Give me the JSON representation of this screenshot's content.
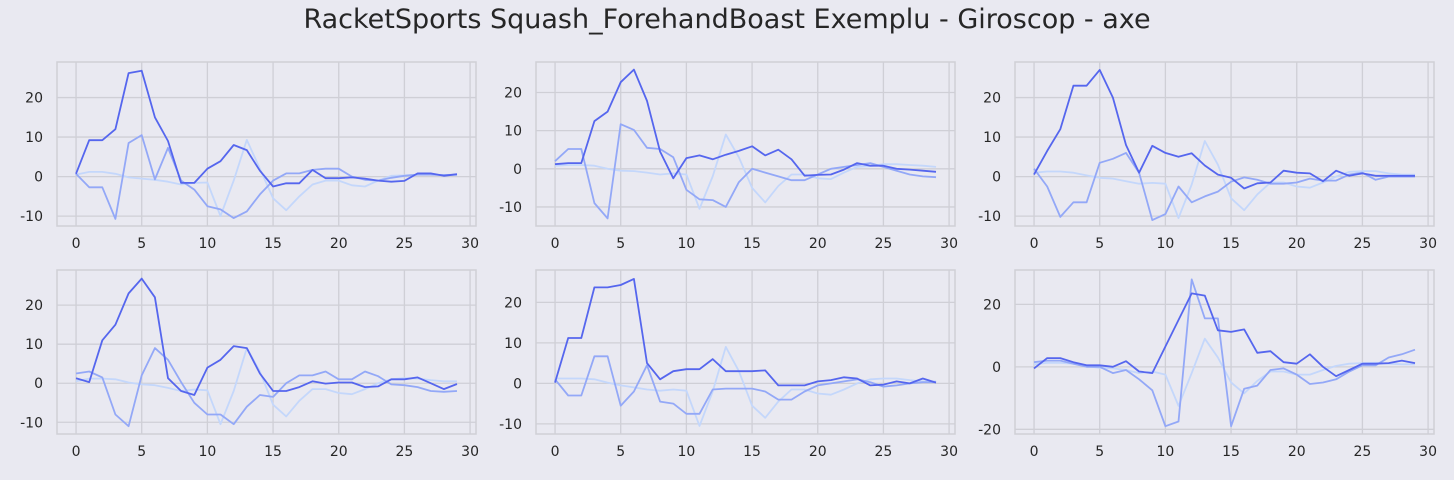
{
  "title": "RacketSports Squash_ForehandBoast Exemplu - Giroscop - axe",
  "colors": {
    "background": "#e9e9f1",
    "plot_bg": "#e9e9f1",
    "grid": "#cfcfd6",
    "series": [
      "#5566ee",
      "#93a8f7",
      "#c4d7fb"
    ]
  },
  "chart_data": [
    {
      "type": "line",
      "title": "",
      "x": [
        0,
        1,
        2,
        3,
        4,
        5,
        6,
        7,
        8,
        9,
        10,
        11,
        12,
        13,
        14,
        15,
        16,
        17,
        18,
        19,
        20,
        21,
        22,
        23,
        24,
        25,
        26,
        27,
        28,
        29
      ],
      "xlim": [
        -1.45,
        30.45
      ],
      "ylim": [
        -12.5,
        29
      ],
      "xticks": [
        0,
        5,
        10,
        15,
        20,
        25,
        30
      ],
      "yticks": [
        -10,
        0,
        10,
        20
      ],
      "series": [
        {
          "values": [
            0.7,
            9.2,
            9.2,
            12,
            26.2,
            26.8,
            15,
            9,
            -1.6,
            -1.6,
            2,
            3.9,
            8,
            6.7,
            1.5,
            -2.5,
            -1.7,
            -1.7,
            1.7,
            -0.4,
            -0.4,
            -0.2,
            -0.5,
            -1,
            -1.3,
            -1.1,
            0.8,
            0.8,
            0.2,
            0.6
          ]
        },
        {
          "values": [
            0.7,
            -2.7,
            -2.7,
            -10.7,
            8.5,
            10.5,
            -0.7,
            7.3,
            -1,
            -3.3,
            -7.5,
            -8.3,
            -10.5,
            -8.8,
            -4.5,
            -1,
            0.8,
            0.8,
            1.7,
            2,
            2,
            0,
            -0.8,
            -1,
            -0.3,
            0.2,
            0.5,
            0.5,
            0.4,
            0.5
          ]
        },
        {
          "values": [
            0.5,
            1.2,
            1.2,
            0.7,
            -0.2,
            -0.5,
            -0.8,
            -1.3,
            -2,
            -1.6,
            -1.5,
            -10,
            -1,
            9.3,
            2,
            -5.5,
            -8.5,
            -5,
            -2,
            -1,
            -1,
            -2.2,
            -2.5,
            -1,
            0.2,
            0.3,
            0.5,
            0.5,
            0.4,
            0.4
          ]
        }
      ]
    },
    {
      "type": "line",
      "title": "",
      "x": [
        0,
        1,
        2,
        3,
        4,
        5,
        6,
        7,
        8,
        9,
        10,
        11,
        12,
        13,
        14,
        15,
        16,
        17,
        18,
        19,
        20,
        21,
        22,
        23,
        24,
        25,
        26,
        27,
        28,
        29
      ],
      "xlim": [
        -1.45,
        30.45
      ],
      "ylim": [
        -15,
        28
      ],
      "xticks": [
        0,
        5,
        10,
        15,
        20,
        25,
        30
      ],
      "yticks": [
        -10,
        0,
        10,
        20
      ],
      "series": [
        {
          "values": [
            1.2,
            1.5,
            1.5,
            12.5,
            15,
            22.7,
            26,
            17.8,
            4.5,
            -2.5,
            2.8,
            3.5,
            2.5,
            3.7,
            4.7,
            5.9,
            3.5,
            5,
            2.5,
            -1.8,
            -1.6,
            -1.5,
            -0.2,
            1.5,
            0.8,
            0.8,
            0,
            -0.2,
            -0.5,
            -0.8
          ]
        },
        {
          "values": [
            2,
            5.2,
            5.2,
            -9,
            -13,
            11.7,
            10.2,
            5.5,
            5.2,
            3,
            -5.5,
            -8,
            -8.2,
            -10,
            -3.5,
            0,
            -1,
            -2,
            -3,
            -3,
            -1.5,
            0,
            0.5,
            1,
            1.5,
            0.5,
            -0.5,
            -1.5,
            -2,
            -2.2
          ]
        },
        {
          "values": [
            0.8,
            1,
            1,
            0.8,
            0,
            -0.5,
            -0.6,
            -1,
            -1.5,
            -1.2,
            -1.5,
            -10.5,
            -2,
            9,
            3,
            -5,
            -8.8,
            -4.5,
            -1.5,
            -1.5,
            -2.5,
            -2.7,
            -1,
            0.5,
            0.7,
            1.2,
            1.2,
            1,
            0.8,
            0.5
          ]
        }
      ]
    },
    {
      "type": "line",
      "title": "",
      "x": [
        0,
        1,
        2,
        3,
        4,
        5,
        6,
        7,
        8,
        9,
        10,
        11,
        12,
        13,
        14,
        15,
        16,
        17,
        18,
        19,
        20,
        21,
        22,
        23,
        24,
        25,
        26,
        27,
        28,
        29
      ],
      "xlim": [
        -1.45,
        30.45
      ],
      "ylim": [
        -12.5,
        29
      ],
      "xticks": [
        0,
        5,
        10,
        15,
        20,
        25,
        30
      ],
      "yticks": [
        -10,
        0,
        10,
        20
      ],
      "series": [
        {
          "values": [
            0.5,
            6.5,
            12,
            23,
            23,
            27,
            20,
            8,
            1,
            7.8,
            6,
            5,
            5.9,
            2.8,
            0.5,
            -0.3,
            -3,
            -1.7,
            -1.5,
            1.5,
            1,
            0.8,
            -1.2,
            1.5,
            0.2,
            0.8,
            0.2,
            0.2,
            0.2,
            0.2
          ]
        },
        {
          "values": [
            2,
            -2.5,
            -10.2,
            -6.5,
            -6.5,
            3.5,
            4.5,
            6,
            1,
            -11,
            -9.5,
            -2.5,
            -6.5,
            -5,
            -3.8,
            -1.3,
            -0.2,
            -0.8,
            -1.8,
            -1.8,
            -1.5,
            -0.5,
            -1,
            -1,
            0.5,
            1,
            -0.8,
            0,
            0,
            0
          ]
        },
        {
          "values": [
            1,
            1.3,
            1.3,
            1,
            0.3,
            -0.3,
            -0.5,
            -1.2,
            -1.8,
            -1.6,
            -1.8,
            -10.5,
            -2,
            9,
            3,
            -5.5,
            -8.5,
            -4.5,
            -1.5,
            -1.5,
            -2.5,
            -2.8,
            -1.5,
            0,
            1.2,
            1.4,
            1.4,
            0.8,
            0.5,
            0.5
          ]
        }
      ]
    },
    {
      "type": "line",
      "title": "",
      "x": [
        0,
        1,
        2,
        3,
        4,
        5,
        6,
        7,
        8,
        9,
        10,
        11,
        12,
        13,
        14,
        15,
        16,
        17,
        18,
        19,
        20,
        21,
        22,
        23,
        24,
        25,
        26,
        27,
        28,
        29
      ],
      "xlim": [
        -1.45,
        30.45
      ],
      "ylim": [
        -13,
        29
      ],
      "xticks": [
        0,
        5,
        10,
        15,
        20,
        25,
        30
      ],
      "yticks": [
        -10,
        0,
        10,
        20
      ],
      "series": [
        {
          "values": [
            1.3,
            0.3,
            11,
            15,
            23,
            26.8,
            22,
            1.3,
            -2,
            -3,
            4,
            6,
            9.5,
            9,
            2.5,
            -2,
            -2,
            -1,
            0.5,
            -0.1,
            0.2,
            0.2,
            -1,
            -0.8,
            1,
            1,
            1.5,
            0,
            -1.5,
            -0.2
          ]
        },
        {
          "values": [
            2.5,
            3,
            1.5,
            -8,
            -11,
            2,
            9,
            6,
            0.3,
            -5,
            -8,
            -8,
            -10.5,
            -6,
            -3,
            -3.5,
            0,
            2,
            2,
            3,
            1,
            1,
            3,
            1.8,
            -0.3,
            -0.5,
            -1,
            -2,
            -2.2,
            -2
          ]
        },
        {
          "values": [
            0.5,
            1.2,
            1.2,
            1,
            0.2,
            -0.3,
            -0.5,
            -1.2,
            -2,
            -1.6,
            -1.8,
            -10.5,
            -2,
            9,
            3,
            -5.5,
            -8.5,
            -4.5,
            -1.5,
            -1.5,
            -2.5,
            -2.8,
            -1.5,
            0,
            1,
            1.3,
            1.2,
            0.8,
            0.5,
            0.5
          ]
        }
      ]
    },
    {
      "type": "line",
      "title": "",
      "x": [
        0,
        1,
        2,
        3,
        4,
        5,
        6,
        7,
        8,
        9,
        10,
        11,
        12,
        13,
        14,
        15,
        16,
        17,
        18,
        19,
        20,
        21,
        22,
        23,
        24,
        25,
        26,
        27,
        28,
        29
      ],
      "xlim": [
        -1.45,
        30.45
      ],
      "ylim": [
        -12.5,
        28
      ],
      "xticks": [
        0,
        5,
        10,
        15,
        20,
        25,
        30
      ],
      "yticks": [
        -10,
        0,
        10,
        20
      ],
      "series": [
        {
          "values": [
            0.2,
            11.2,
            11.2,
            23.7,
            23.7,
            24.3,
            25.8,
            5,
            1,
            3,
            3.5,
            3.5,
            6,
            3,
            3,
            3,
            3.2,
            -0.5,
            -0.5,
            -0.5,
            0.5,
            0.8,
            1.5,
            1.2,
            -0.5,
            -0.3,
            0.5,
            0,
            1.2,
            0.2
          ]
        },
        {
          "values": [
            1,
            -3,
            -3,
            6.7,
            6.7,
            -5.5,
            -2,
            4.5,
            -4.5,
            -5,
            -7.5,
            -7.5,
            -1.5,
            -1.3,
            -1.3,
            -1.3,
            -2,
            -4,
            -4,
            -2,
            -0.5,
            0,
            0.5,
            1,
            0.3,
            -0.8,
            -0.5,
            0,
            0.3,
            0.3
          ]
        },
        {
          "values": [
            1.2,
            1.2,
            1.2,
            1,
            0.2,
            -0.5,
            -1,
            -1.5,
            -1.8,
            -1.5,
            -1.8,
            -10.5,
            -2,
            9,
            3,
            -5.5,
            -8.5,
            -4.5,
            -1.5,
            -1.5,
            -2.5,
            -2.8,
            -1.5,
            0,
            1,
            1.2,
            1.2,
            0.8,
            0.5,
            0.5
          ]
        }
      ]
    },
    {
      "type": "line",
      "title": "",
      "x": [
        0,
        1,
        2,
        3,
        4,
        5,
        6,
        7,
        8,
        9,
        10,
        11,
        12,
        13,
        14,
        15,
        16,
        17,
        18,
        19,
        20,
        21,
        22,
        23,
        24,
        25,
        26,
        27,
        28,
        29
      ],
      "xlim": [
        -1.45,
        30.45
      ],
      "ylim": [
        -21.5,
        31
      ],
      "xticks": [
        0,
        5,
        10,
        15,
        20,
        25,
        30
      ],
      "yticks": [
        -20,
        0,
        20
      ],
      "series": [
        {
          "values": [
            -0.5,
            2.8,
            2.8,
            1.5,
            0.5,
            0.5,
            0,
            1.8,
            -1.5,
            -2,
            6.5,
            15,
            23.5,
            22.8,
            11.7,
            11.2,
            12,
            4.5,
            5,
            1.5,
            1,
            4,
            0,
            -3,
            -1,
            1,
            1,
            1.2,
            2,
            1.2
          ]
        },
        {
          "values": [
            1.5,
            2,
            2,
            1,
            0,
            0,
            -2,
            -1,
            -4,
            -7.5,
            -19,
            -17.5,
            28,
            15.5,
            15.5,
            -19,
            -7,
            -6,
            -1,
            -0.5,
            -2.5,
            -5.5,
            -5,
            -4,
            -1.5,
            0.5,
            0.5,
            3,
            4,
            5.5
          ]
        },
        {
          "values": [
            0.8,
            1.3,
            1.3,
            1,
            0.2,
            -0.3,
            -0.5,
            -1,
            -2,
            -1.5,
            -2.5,
            -12.5,
            -2,
            9,
            3,
            -5,
            -8.5,
            -4.5,
            -1.5,
            -1.5,
            -2.5,
            -2.5,
            -1,
            0.3,
            1,
            1.2,
            1.3,
            1,
            0.8,
            0.8
          ]
        }
      ]
    }
  ]
}
